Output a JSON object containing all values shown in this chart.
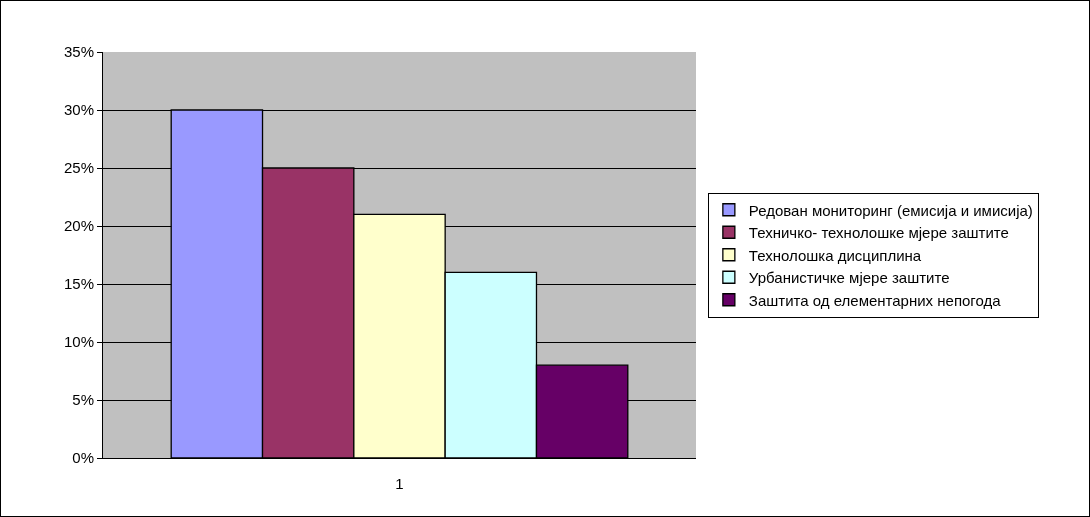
{
  "chart_data": {
    "type": "bar",
    "categories": [
      "1"
    ],
    "series": [
      {
        "name": "Редован мониторинг (емисија и имисија)",
        "color": "#9999ff",
        "values": [
          30
        ]
      },
      {
        "name": "Техничко- технолошке мјере заштите",
        "color": "#993366",
        "values": [
          25
        ]
      },
      {
        "name": "Технолошка дисциплина",
        "color": "#ffffcc",
        "values": [
          21
        ]
      },
      {
        "name": "Урбанистичке мјере заштите",
        "color": "#ccffff",
        "values": [
          16
        ]
      },
      {
        "name": "Заштита од елементарних непогода",
        "color": "#660066",
        "values": [
          8
        ]
      }
    ],
    "ylim": [
      0,
      35
    ],
    "yticks": [
      {
        "value": 0,
        "label": "0%"
      },
      {
        "value": 5,
        "label": "5%"
      },
      {
        "value": 10,
        "label": "10%"
      },
      {
        "value": 15,
        "label": "15%"
      },
      {
        "value": 20,
        "label": "20%"
      },
      {
        "value": 25,
        "label": "25%"
      },
      {
        "value": 30,
        "label": "30%"
      },
      {
        "value": 35,
        "label": "35%"
      }
    ],
    "grid": "y",
    "legend": "right"
  }
}
